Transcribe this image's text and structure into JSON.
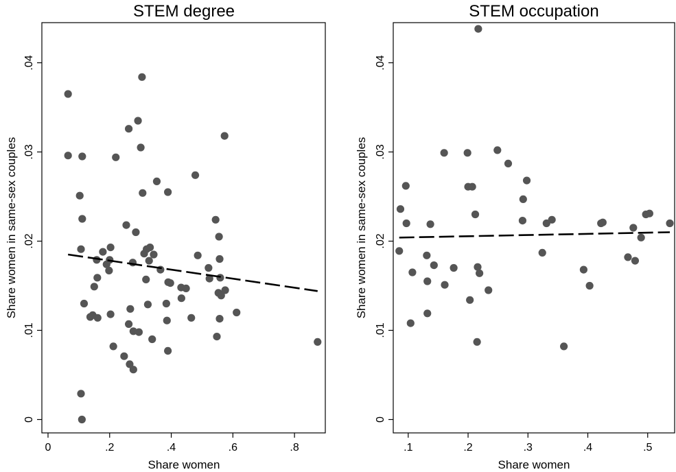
{
  "chart_data": [
    {
      "type": "scatter",
      "title": "STEM degree",
      "xlabel": "Share women",
      "ylabel": "Share women in same-sex couples",
      "xlim": [
        -0.02,
        0.9
      ],
      "ylim": [
        -0.0015,
        0.0445
      ],
      "xticks": [
        0,
        0.2,
        0.4,
        0.6,
        0.8
      ],
      "xtick_labels": [
        "0",
        ".2",
        ".4",
        ".6",
        ".8"
      ],
      "yticks": [
        0,
        0.01,
        0.02,
        0.03,
        0.04
      ],
      "ytick_labels": [
        "0",
        ".01",
        ".02",
        ".03",
        ".04"
      ],
      "grid": false,
      "marker_color": "#555555",
      "fit_line": {
        "style": "dashed",
        "color": "#000000",
        "x": [
          0.065,
          0.875
        ],
        "y": [
          0.0185,
          0.0144
        ]
      },
      "points": [
        [
          0.065,
          0.0365
        ],
        [
          0.065,
          0.0296
        ],
        [
          0.103,
          0.0251
        ],
        [
          0.107,
          0.0191
        ],
        [
          0.111,
          0.0295
        ],
        [
          0.111,
          0.0225
        ],
        [
          0.117,
          0.013
        ],
        [
          0.107,
          0.0029
        ],
        [
          0.11,
          0.0
        ],
        [
          0.137,
          0.0115
        ],
        [
          0.145,
          0.0117
        ],
        [
          0.15,
          0.0149
        ],
        [
          0.158,
          0.0179
        ],
        [
          0.16,
          0.0159
        ],
        [
          0.161,
          0.0114
        ],
        [
          0.178,
          0.0188
        ],
        [
          0.19,
          0.0174
        ],
        [
          0.198,
          0.0167
        ],
        [
          0.2,
          0.0179
        ],
        [
          0.203,
          0.0193
        ],
        [
          0.203,
          0.0118
        ],
        [
          0.212,
          0.0082
        ],
        [
          0.22,
          0.0294
        ],
        [
          0.247,
          0.0071
        ],
        [
          0.254,
          0.0218
        ],
        [
          0.262,
          0.0326
        ],
        [
          0.262,
          0.0107
        ],
        [
          0.267,
          0.0124
        ],
        [
          0.265,
          0.0062
        ],
        [
          0.275,
          0.0176
        ],
        [
          0.277,
          0.0099
        ],
        [
          0.277,
          0.0056
        ],
        [
          0.285,
          0.021
        ],
        [
          0.292,
          0.0335
        ],
        [
          0.295,
          0.0098
        ],
        [
          0.301,
          0.0305
        ],
        [
          0.305,
          0.0384
        ],
        [
          0.307,
          0.0254
        ],
        [
          0.312,
          0.0186
        ],
        [
          0.318,
          0.0157
        ],
        [
          0.32,
          0.0191
        ],
        [
          0.324,
          0.0129
        ],
        [
          0.328,
          0.0178
        ],
        [
          0.331,
          0.0193
        ],
        [
          0.338,
          0.009
        ],
        [
          0.343,
          0.0185
        ],
        [
          0.353,
          0.0267
        ],
        [
          0.365,
          0.0168
        ],
        [
          0.384,
          0.013
        ],
        [
          0.386,
          0.0111
        ],
        [
          0.389,
          0.0255
        ],
        [
          0.39,
          0.0154
        ],
        [
          0.389,
          0.0077
        ],
        [
          0.397,
          0.0153
        ],
        [
          0.432,
          0.0148
        ],
        [
          0.433,
          0.0136
        ],
        [
          0.448,
          0.0147
        ],
        [
          0.465,
          0.0114
        ],
        [
          0.478,
          0.0274
        ],
        [
          0.486,
          0.0184
        ],
        [
          0.521,
          0.017
        ],
        [
          0.524,
          0.0158
        ],
        [
          0.544,
          0.0224
        ],
        [
          0.548,
          0.0093
        ],
        [
          0.553,
          0.0142
        ],
        [
          0.555,
          0.0205
        ],
        [
          0.557,
          0.018
        ],
        [
          0.557,
          0.0113
        ],
        [
          0.559,
          0.0159
        ],
        [
          0.562,
          0.0139
        ],
        [
          0.573,
          0.0318
        ],
        [
          0.575,
          0.0145
        ],
        [
          0.612,
          0.012
        ],
        [
          0.875,
          0.0087
        ]
      ]
    },
    {
      "type": "scatter",
      "title": "STEM occupation",
      "xlabel": "Share women",
      "ylabel": "Share women in same-sex couples",
      "xlim": [
        0.075,
        0.545
      ],
      "ylim": [
        -0.0015,
        0.0445
      ],
      "xticks": [
        0.1,
        0.2,
        0.3,
        0.4,
        0.5
      ],
      "xtick_labels": [
        ".1",
        ".2",
        ".3",
        ".4",
        ".5"
      ],
      "yticks": [
        0,
        0.01,
        0.02,
        0.03,
        0.04
      ],
      "ytick_labels": [
        "0",
        ".01",
        ".02",
        ".03",
        ".04"
      ],
      "grid": false,
      "marker_color": "#555555",
      "fit_line": {
        "style": "dashed",
        "color": "#000000",
        "x": [
          0.085,
          0.537
        ],
        "y": [
          0.0204
        ],
        "y_end": 0.021
      },
      "points": [
        [
          0.085,
          0.0189
        ],
        [
          0.087,
          0.0236
        ],
        [
          0.096,
          0.0262
        ],
        [
          0.097,
          0.022
        ],
        [
          0.104,
          0.0108
        ],
        [
          0.107,
          0.0165
        ],
        [
          0.131,
          0.0184
        ],
        [
          0.132,
          0.0155
        ],
        [
          0.132,
          0.0119
        ],
        [
          0.137,
          0.0219
        ],
        [
          0.143,
          0.0173
        ],
        [
          0.16,
          0.0299
        ],
        [
          0.161,
          0.0151
        ],
        [
          0.176,
          0.017
        ],
        [
          0.199,
          0.0299
        ],
        [
          0.2,
          0.0261
        ],
        [
          0.203,
          0.0134
        ],
        [
          0.207,
          0.0261
        ],
        [
          0.212,
          0.023
        ],
        [
          0.215,
          0.0087
        ],
        [
          0.216,
          0.0171
        ],
        [
          0.217,
          0.0438
        ],
        [
          0.219,
          0.0164
        ],
        [
          0.234,
          0.0145
        ],
        [
          0.249,
          0.0302
        ],
        [
          0.267,
          0.0287
        ],
        [
          0.291,
          0.0223
        ],
        [
          0.292,
          0.0247
        ],
        [
          0.298,
          0.0268
        ],
        [
          0.324,
          0.0187
        ],
        [
          0.331,
          0.022
        ],
        [
          0.34,
          0.0224
        ],
        [
          0.36,
          0.0082
        ],
        [
          0.393,
          0.0168
        ],
        [
          0.403,
          0.015
        ],
        [
          0.422,
          0.022
        ],
        [
          0.425,
          0.0221
        ],
        [
          0.467,
          0.0182
        ],
        [
          0.476,
          0.0215
        ],
        [
          0.479,
          0.0178
        ],
        [
          0.489,
          0.0204
        ],
        [
          0.497,
          0.023
        ],
        [
          0.503,
          0.0231
        ],
        [
          0.537,
          0.022
        ]
      ]
    }
  ]
}
